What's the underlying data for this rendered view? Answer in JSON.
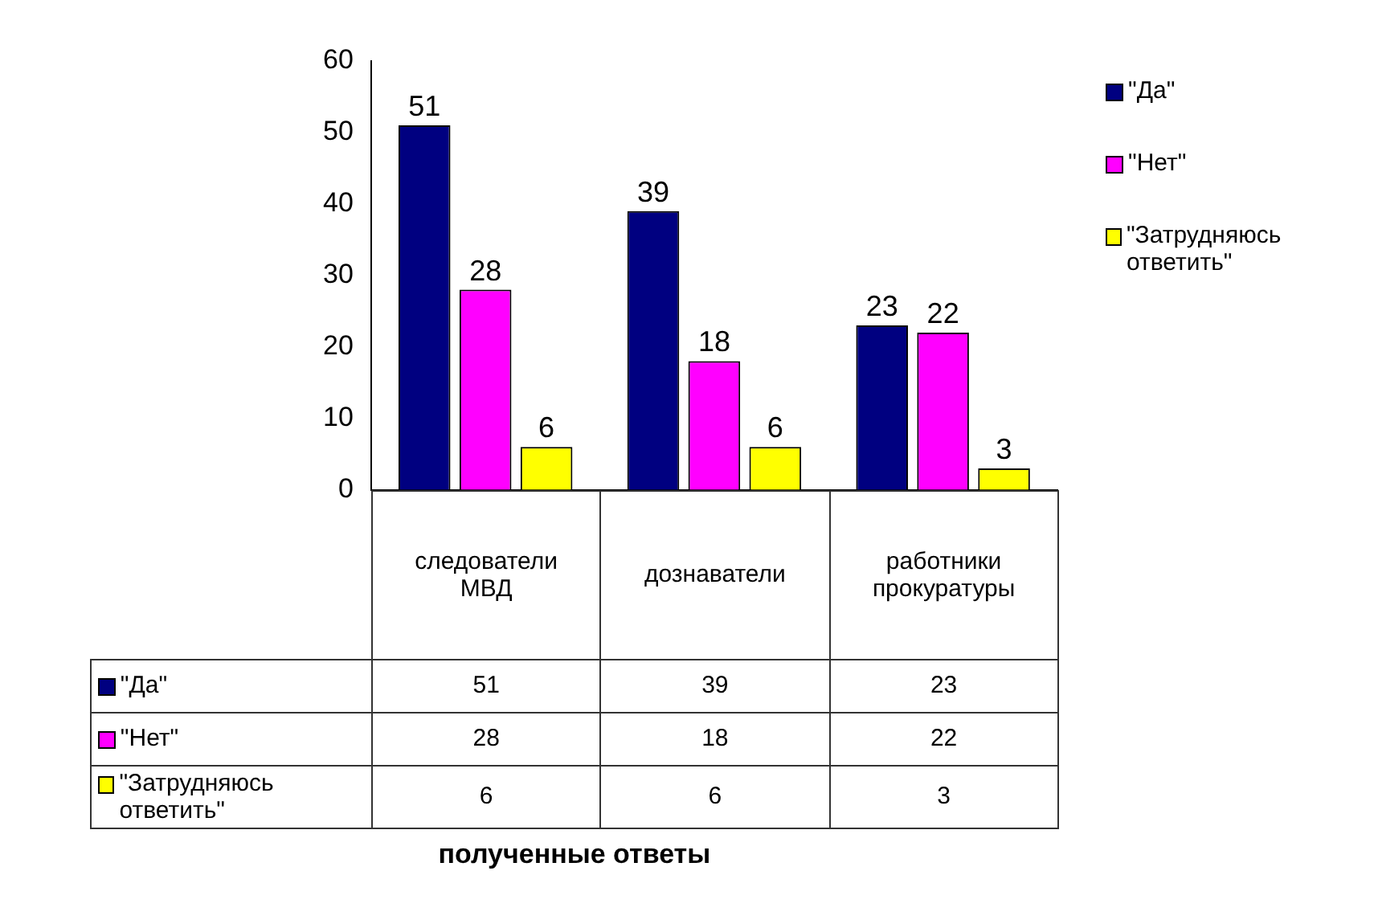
{
  "chart_data": {
    "type": "bar",
    "annotations": [
      "полученные ответы",
      "51",
      "39",
      "23",
      "28",
      "18",
      "22",
      "6",
      "6",
      "3"
    ],
    "categories": [
      "следователи МВД",
      "дознаватели",
      "работники прокуратуры"
    ],
    "series": [
      {
        "name": "\"Да\"",
        "color": "#000080",
        "values": [
          51,
          39,
          23
        ],
        "value_labels": [
          "51",
          "39",
          "23"
        ]
      },
      {
        "name": "\"Нет\"",
        "color": "#ff00ff",
        "values": [
          28,
          18,
          22
        ],
        "value_labels": [
          "28",
          "18",
          "22"
        ]
      },
      {
        "name": "\"Затрудняюсь ответить\"",
        "color": "#ffff00",
        "values": [
          6,
          6,
          3
        ],
        "value_labels": [
          "6",
          "6",
          "3"
        ]
      }
    ],
    "ylim": [
      0,
      60
    ],
    "yticks": [
      0,
      10,
      20,
      30,
      40,
      50,
      60
    ],
    "grid": false,
    "legend": "right"
  }
}
